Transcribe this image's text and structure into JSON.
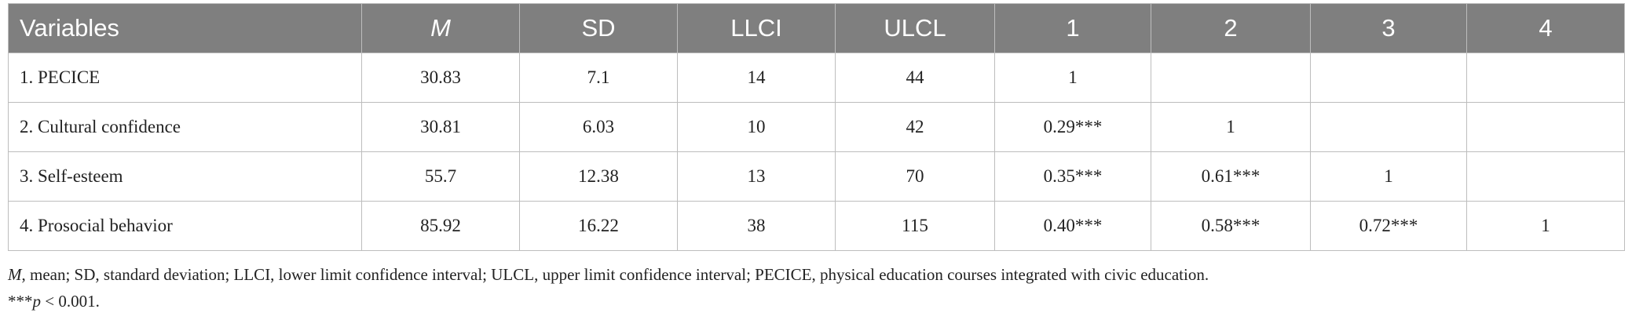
{
  "table": {
    "header": [
      "Variables",
      "M",
      "SD",
      "LLCI",
      "ULCL",
      "1",
      "2",
      "3",
      "4"
    ],
    "rows": [
      [
        "1. PECICE",
        "30.83",
        "7.1",
        "14",
        "44",
        "1"
      ],
      [
        "2. Cultural confidence",
        "30.81",
        "6.03",
        "10",
        "42",
        "0.29***",
        "1"
      ],
      [
        "3. Self-esteem",
        "55.7",
        "12.38",
        "13",
        "70",
        "0.35***",
        "0.61***",
        "1"
      ],
      [
        "4. Prosocial behavior",
        "85.92",
        "16.22",
        "38",
        "115",
        "0.40***",
        "0.58***",
        "0.72***",
        "1"
      ]
    ]
  },
  "notes": [
    {
      "italic": "M",
      "text": ", mean; SD, standard deviation; LLCI, lower limit confidence interval; ULCL, upper limit confidence interval; PECICE, physical education courses integrated with civic education."
    },
    {
      "prefix": "***",
      "italic": "p",
      "text": " < 0.001."
    }
  ]
}
